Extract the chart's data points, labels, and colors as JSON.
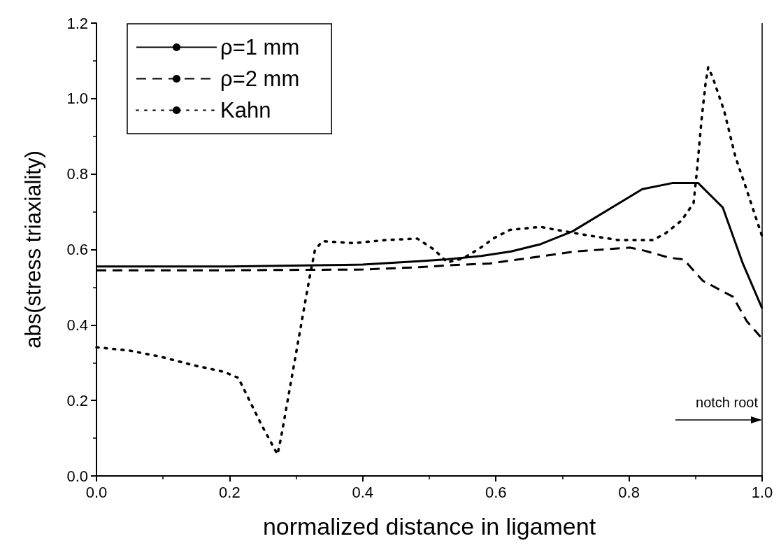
{
  "chart_data": {
    "type": "line",
    "xlabel": "normalized distance in ligament",
    "ylabel": "abs(stress triaxiality)",
    "xlim": [
      0,
      1
    ],
    "xticks": [
      {
        "value": 0,
        "label": "0.0"
      },
      {
        "value": 0.2,
        "label": "0.2"
      },
      {
        "value": 0.4,
        "label": "0.4"
      },
      {
        "value": 0.6,
        "label": "0.6"
      },
      {
        "value": 0.8,
        "label": "0.8"
      },
      {
        "value": 1,
        "label": "1.0"
      }
    ],
    "ylim": [
      0,
      1.2
    ],
    "yticks": [
      {
        "value": 0,
        "label": "0.0"
      },
      {
        "value": 0.2,
        "label": "0.2"
      },
      {
        "value": 0.4,
        "label": "0.4"
      },
      {
        "value": 0.6,
        "label": "0.6"
      },
      {
        "value": 0.8,
        "label": "0.8"
      },
      {
        "value": 1,
        "label": "1.0"
      },
      {
        "value": 1.2,
        "label": "1.2"
      }
    ],
    "grid": false,
    "legend": "top left",
    "marker": "none",
    "series": [
      {
        "name": "ρ=1 mm",
        "color": "#000000",
        "line_style": "solid",
        "x": [
          0,
          0.2,
          0.4,
          0.484,
          0.527,
          0.578,
          0.623,
          0.667,
          0.715,
          0.82,
          0.865,
          0.904,
          0.941,
          0.971,
          1
        ],
        "values": [
          0.555,
          0.555,
          0.56,
          0.569,
          0.574,
          0.583,
          0.595,
          0.614,
          0.648,
          0.76,
          0.776,
          0.776,
          0.711,
          0.563,
          0.444
        ]
      },
      {
        "name": "ρ=2 mm",
        "color": "#000000",
        "line_style": "dashed",
        "x": [
          0,
          0.2,
          0.4,
          0.484,
          0.527,
          0.591,
          0.668,
          0.72,
          0.801,
          0.823,
          0.861,
          0.882,
          0.911,
          0.956,
          0.977,
          1
        ],
        "values": [
          0.545,
          0.545,
          0.547,
          0.553,
          0.558,
          0.563,
          0.582,
          0.595,
          0.605,
          0.597,
          0.578,
          0.574,
          0.517,
          0.475,
          0.41,
          0.364
        ]
      },
      {
        "name": "Kahn",
        "color": "#000000",
        "line_style": "dotted",
        "x": [
          0,
          0.05,
          0.096,
          0.144,
          0.191,
          0.213,
          0.248,
          0.272,
          0.277,
          0.298,
          0.319,
          0.328,
          0.339,
          0.387,
          0.434,
          0.482,
          0.507,
          0.527,
          0.55,
          0.574,
          0.597,
          0.621,
          0.667,
          0.691,
          0.74,
          0.784,
          0.836,
          0.855,
          0.879,
          0.897,
          0.902,
          0.909,
          0.915,
          0.919,
          0.926,
          0.943,
          0.96,
          0.977,
          0.992,
          1
        ],
        "values": [
          0.341,
          0.332,
          0.316,
          0.294,
          0.276,
          0.26,
          0.135,
          0.057,
          0.099,
          0.307,
          0.515,
          0.597,
          0.622,
          0.617,
          0.625,
          0.629,
          0.6,
          0.566,
          0.576,
          0.601,
          0.63,
          0.652,
          0.66,
          0.652,
          0.637,
          0.625,
          0.625,
          0.643,
          0.677,
          0.723,
          0.807,
          0.944,
          1.04,
          1.083,
          1.055,
          0.967,
          0.845,
          0.757,
          0.677,
          0.635
        ]
      }
    ],
    "ref_lines": [
      {
        "axis": "x",
        "value": 1,
        "label": "notch root"
      }
    ]
  }
}
